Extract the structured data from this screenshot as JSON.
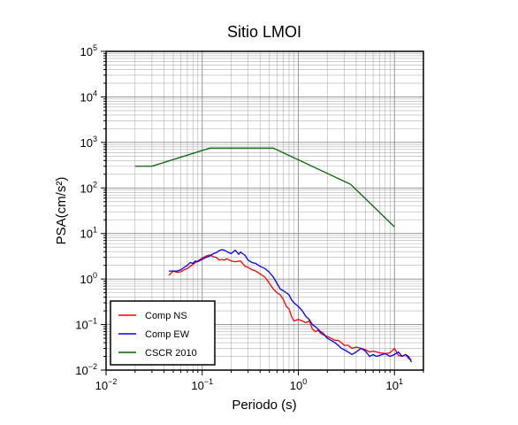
{
  "chart_data": {
    "type": "line",
    "title": "Sitio LMOI",
    "xlabel": "Periodo (s)",
    "ylabel": "PSA(cm/s²)",
    "x_scale": "log",
    "y_scale": "log",
    "xlim": [
      0.01,
      20
    ],
    "ylim": [
      0.01,
      100000
    ],
    "grid": true,
    "x_ticks": [
      {
        "base": "10",
        "exp": "−2",
        "value": 0.01
      },
      {
        "base": "10",
        "exp": "−1",
        "value": 0.1
      },
      {
        "base": "10",
        "exp": "0",
        "value": 1
      },
      {
        "base": "10",
        "exp": "1",
        "value": 10
      }
    ],
    "y_ticks": [
      {
        "base": "10",
        "exp": "−2",
        "value": 0.01
      },
      {
        "base": "10",
        "exp": "−1",
        "value": 0.1
      },
      {
        "base": "10",
        "exp": "0",
        "value": 1
      },
      {
        "base": "10",
        "exp": "1",
        "value": 10
      },
      {
        "base": "10",
        "exp": "2",
        "value": 100
      },
      {
        "base": "10",
        "exp": "3",
        "value": 1000
      },
      {
        "base": "10",
        "exp": "4",
        "value": 10000
      },
      {
        "base": "10",
        "exp": "5",
        "value": 100000
      }
    ],
    "legend_position": "bottom-left",
    "series": [
      {
        "name": "Comp NS",
        "color": "#ff0000",
        "points": [
          [
            0.045,
            1.2
          ],
          [
            0.05,
            1.5
          ],
          [
            0.055,
            1.4
          ],
          [
            0.06,
            1.45
          ],
          [
            0.065,
            1.6
          ],
          [
            0.07,
            1.7
          ],
          [
            0.075,
            1.9
          ],
          [
            0.08,
            2.1
          ],
          [
            0.085,
            2.3
          ],
          [
            0.09,
            2.5
          ],
          [
            0.1,
            2.9
          ],
          [
            0.11,
            3.2
          ],
          [
            0.12,
            3.4
          ],
          [
            0.13,
            3.1
          ],
          [
            0.14,
            3.0
          ],
          [
            0.15,
            2.6
          ],
          [
            0.16,
            2.7
          ],
          [
            0.17,
            2.6
          ],
          [
            0.18,
            2.8
          ],
          [
            0.2,
            2.5
          ],
          [
            0.22,
            2.4
          ],
          [
            0.25,
            2.5
          ],
          [
            0.28,
            1.9
          ],
          [
            0.3,
            1.8
          ],
          [
            0.33,
            1.6
          ],
          [
            0.36,
            1.5
          ],
          [
            0.4,
            1.3
          ],
          [
            0.45,
            1.1
          ],
          [
            0.5,
            0.8
          ],
          [
            0.55,
            0.6
          ],
          [
            0.6,
            0.5
          ],
          [
            0.65,
            0.45
          ],
          [
            0.7,
            0.35
          ],
          [
            0.75,
            0.25
          ],
          [
            0.8,
            0.22
          ],
          [
            0.85,
            0.15
          ],
          [
            0.9,
            0.12
          ],
          [
            1.0,
            0.13
          ],
          [
            1.1,
            0.12
          ],
          [
            1.2,
            0.11
          ],
          [
            1.3,
            0.12
          ],
          [
            1.4,
            0.08
          ],
          [
            1.5,
            0.07
          ],
          [
            1.6,
            0.075
          ],
          [
            1.7,
            0.065
          ],
          [
            1.8,
            0.06
          ],
          [
            2.0,
            0.055
          ],
          [
            2.2,
            0.05
          ],
          [
            2.4,
            0.045
          ],
          [
            2.6,
            0.045
          ],
          [
            2.8,
            0.04
          ],
          [
            3.0,
            0.035
          ],
          [
            3.3,
            0.035
          ],
          [
            3.6,
            0.03
          ],
          [
            4.0,
            0.032
          ],
          [
            4.5,
            0.03
          ],
          [
            5.0,
            0.028
          ],
          [
            5.5,
            0.025
          ],
          [
            6.0,
            0.026
          ],
          [
            6.5,
            0.025
          ],
          [
            7.0,
            0.024
          ],
          [
            8.0,
            0.023
          ],
          [
            9.0,
            0.024
          ],
          [
            10.0,
            0.03
          ],
          [
            11.0,
            0.021
          ],
          [
            12.0,
            0.02
          ],
          [
            13.0,
            0.022
          ],
          [
            14.0,
            0.018
          ],
          [
            15.0,
            0.017
          ]
        ]
      },
      {
        "name": "Comp EW",
        "color": "#0000ff",
        "points": [
          [
            0.045,
            1.5
          ],
          [
            0.05,
            1.5
          ],
          [
            0.055,
            1.5
          ],
          [
            0.06,
            1.6
          ],
          [
            0.065,
            1.8
          ],
          [
            0.07,
            2.0
          ],
          [
            0.075,
            2.3
          ],
          [
            0.08,
            2.2
          ],
          [
            0.085,
            2.5
          ],
          [
            0.09,
            2.4
          ],
          [
            0.1,
            2.7
          ],
          [
            0.11,
            3.0
          ],
          [
            0.12,
            3.2
          ],
          [
            0.13,
            3.6
          ],
          [
            0.14,
            3.8
          ],
          [
            0.15,
            4.2
          ],
          [
            0.16,
            4.4
          ],
          [
            0.17,
            4.3
          ],
          [
            0.18,
            4.0
          ],
          [
            0.2,
            3.6
          ],
          [
            0.22,
            4.3
          ],
          [
            0.24,
            3.5
          ],
          [
            0.25,
            3.9
          ],
          [
            0.28,
            3.3
          ],
          [
            0.3,
            2.6
          ],
          [
            0.33,
            2.3
          ],
          [
            0.36,
            2.2
          ],
          [
            0.4,
            1.9
          ],
          [
            0.45,
            1.7
          ],
          [
            0.5,
            1.4
          ],
          [
            0.55,
            1.1
          ],
          [
            0.6,
            0.8
          ],
          [
            0.65,
            0.6
          ],
          [
            0.7,
            0.55
          ],
          [
            0.75,
            0.5
          ],
          [
            0.8,
            0.45
          ],
          [
            0.85,
            0.35
          ],
          [
            0.9,
            0.3
          ],
          [
            1.0,
            0.25
          ],
          [
            1.1,
            0.2
          ],
          [
            1.2,
            0.15
          ],
          [
            1.3,
            0.13
          ],
          [
            1.4,
            0.1
          ],
          [
            1.5,
            0.09
          ],
          [
            1.6,
            0.08
          ],
          [
            1.7,
            0.07
          ],
          [
            1.8,
            0.065
          ],
          [
            2.0,
            0.05
          ],
          [
            2.2,
            0.045
          ],
          [
            2.4,
            0.04
          ],
          [
            2.6,
            0.035
          ],
          [
            2.8,
            0.03
          ],
          [
            3.0,
            0.028
          ],
          [
            3.3,
            0.025
          ],
          [
            3.6,
            0.022
          ],
          [
            4.0,
            0.025
          ],
          [
            4.5,
            0.03
          ],
          [
            5.0,
            0.026
          ],
          [
            5.5,
            0.02
          ],
          [
            6.0,
            0.022
          ],
          [
            6.5,
            0.02
          ],
          [
            7.0,
            0.021
          ],
          [
            8.0,
            0.023
          ],
          [
            9.0,
            0.02
          ],
          [
            10.0,
            0.022
          ],
          [
            11.0,
            0.025
          ],
          [
            12.0,
            0.02
          ],
          [
            13.0,
            0.022
          ],
          [
            14.0,
            0.02
          ],
          [
            15.0,
            0.015
          ]
        ]
      },
      {
        "name": "CSCR 2010",
        "color": "#006400",
        "points": [
          [
            0.02,
            300
          ],
          [
            0.03,
            300
          ],
          [
            0.12,
            750
          ],
          [
            0.55,
            750
          ],
          [
            3.5,
            120
          ],
          [
            10.0,
            14
          ]
        ]
      }
    ]
  }
}
